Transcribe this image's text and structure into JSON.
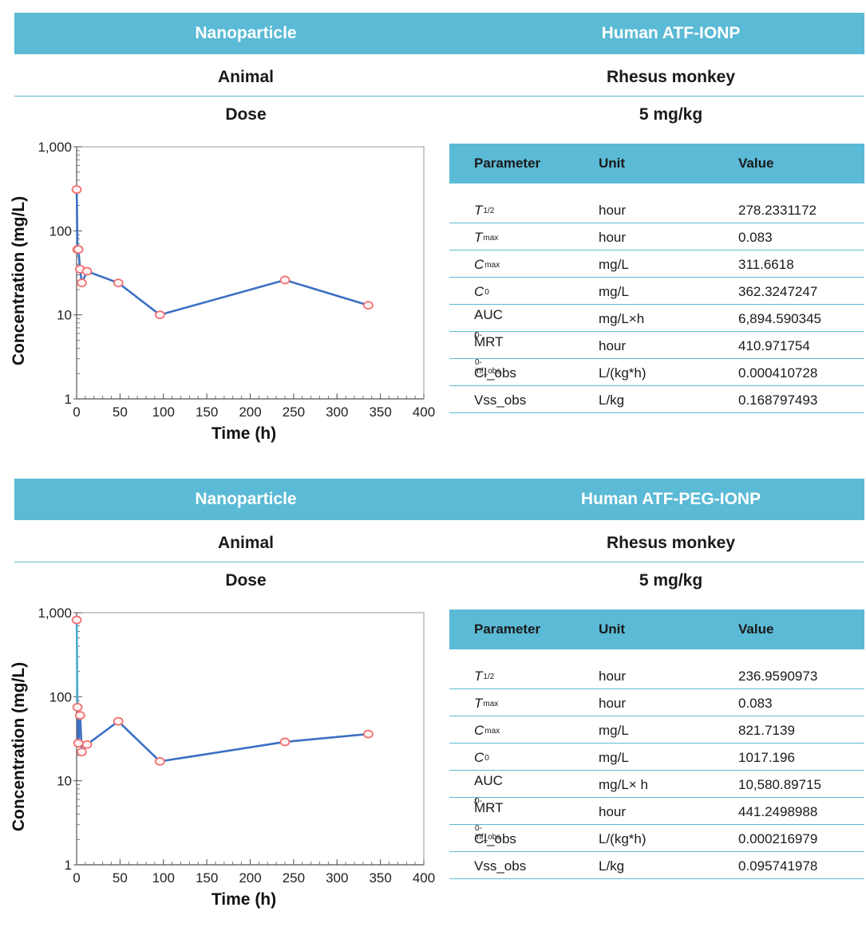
{
  "panels": [
    {
      "header_left": "Nanoparticle",
      "header_right": "Human ATF-IONP",
      "animal_label": "Animal",
      "animal_value": "Rhesus monkey",
      "dose_label": "Dose",
      "dose_value": "5 mg/kg",
      "table": {
        "headers": [
          "Parameter",
          "Unit",
          "Value"
        ],
        "rows": [
          {
            "sym": "T",
            "sub": "1/2",
            "unit": "hour",
            "value": "278.2331172"
          },
          {
            "sym": "T",
            "sub": "max",
            "unit": "hour",
            "value": "0.083"
          },
          {
            "sym": "C",
            "sub": "max",
            "unit": "mg/L",
            "value": "311.6618"
          },
          {
            "sym": "C",
            "sub": "0",
            "unit": "mg/L",
            "value": "362.3247247"
          },
          {
            "sym": "AUC",
            "sub": "0-",
            "sub_italic": "t",
            "unit": "mg/L×h",
            "value": "6,894.590345"
          },
          {
            "sym": "MRT",
            "sub": "0-inf_obs",
            "unit": "hour",
            "value": "410.971754"
          },
          {
            "sym": "Cl_obs",
            "sub": "",
            "unit": "L/(kg*h)",
            "value": "0.000410728"
          },
          {
            "sym": "Vss_obs",
            "sub": "",
            "unit": "L/kg",
            "value": "0.168797493"
          }
        ]
      }
    },
    {
      "header_left": "Nanoparticle",
      "header_right": "Human ATF-PEG-IONP",
      "animal_label": "Animal",
      "animal_value": "Rhesus monkey",
      "dose_label": "Dose",
      "dose_value": "5 mg/kg",
      "table": {
        "headers": [
          "Parameter",
          "Unit",
          "Value"
        ],
        "rows": [
          {
            "sym": "T",
            "sub": "1/2",
            "unit": "hour",
            "value": "236.9590973"
          },
          {
            "sym": "T",
            "sub": "max",
            "unit": "hour",
            "value": "0.083"
          },
          {
            "sym": "C",
            "sub": "max",
            "unit": "mg/L",
            "value": "821.7139"
          },
          {
            "sym": "C",
            "sub": "0",
            "unit": "mg/L",
            "value": "1017.196"
          },
          {
            "sym": "AUC",
            "sub": "0-",
            "sub_italic": "t",
            "unit": "mg/L× h",
            "value": "10,580.89715"
          },
          {
            "sym": "MRT",
            "sub": "0-inf_obs",
            "unit": "hour",
            "value": "441.2498988"
          },
          {
            "sym": "Cl_obs",
            "sub": "",
            "unit": "L/(kg*h)",
            "value": "0.000216979"
          },
          {
            "sym": "Vss_obs",
            "sub": "",
            "unit": "L/kg",
            "value": "0.095741978"
          }
        ]
      }
    }
  ],
  "chart_data": [
    {
      "type": "line",
      "xlabel": "Time (h)",
      "ylabel": "Concentration (mg/L)",
      "xlim": [
        0,
        400
      ],
      "ylim": [
        1,
        1000
      ],
      "yscale": "log",
      "xticks": [
        "0",
        "50",
        "100",
        "150",
        "200",
        "250",
        "300",
        "350",
        "400"
      ],
      "yticks": [
        "1",
        "10",
        "100",
        "1,000"
      ],
      "line_color": "#3d6fc4",
      "marker_color": "#f07070",
      "x": [
        0.083,
        1,
        2,
        4,
        6,
        12,
        48,
        96,
        240,
        336
      ],
      "y": [
        310,
        60,
        60,
        35,
        24,
        33,
        24,
        10,
        26,
        13
      ]
    },
    {
      "type": "line",
      "xlabel": "Time (h)",
      "ylabel": "Concentration (mg/L)",
      "xlim": [
        0,
        400
      ],
      "ylim": [
        1,
        1000
      ],
      "yscale": "log",
      "xticks": [
        "0",
        "50",
        "100",
        "150",
        "200",
        "250",
        "300",
        "350",
        "400"
      ],
      "yticks": [
        "1",
        "10",
        "100",
        "1,000"
      ],
      "line_color": "#3d6fc4",
      "marker_color": "#f07070",
      "first_segment_color": "#4aaed0",
      "x": [
        0.083,
        1,
        2,
        4,
        6,
        12,
        48,
        96,
        240,
        336
      ],
      "y": [
        820,
        75,
        28,
        60,
        22,
        27,
        51,
        17,
        29,
        36
      ]
    }
  ]
}
